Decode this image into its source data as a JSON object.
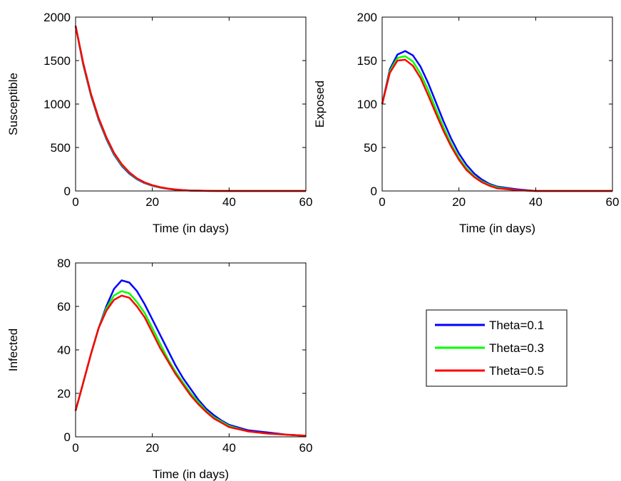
{
  "chart_data": [
    {
      "type": "line",
      "xlabel": "Time (in days)",
      "ylabel": "Susceptible",
      "xlim": [
        0,
        60
      ],
      "ylim": [
        0,
        2000
      ],
      "xticks": [
        "0",
        "20",
        "40",
        "60"
      ],
      "yticks": [
        "0",
        "500",
        "1000",
        "1500",
        "2000"
      ],
      "x": [
        0,
        2,
        4,
        6,
        8,
        10,
        12,
        14,
        16,
        18,
        20,
        22,
        24,
        26,
        28,
        30,
        35,
        40,
        45,
        50,
        55,
        60
      ],
      "series": [
        {
          "name": "Theta=0.1",
          "values": [
            1900,
            1450,
            1100,
            820,
            600,
            420,
            290,
            200,
            135,
            90,
            60,
            40,
            25,
            15,
            8,
            4,
            1,
            0,
            0,
            0,
            0,
            0
          ]
        },
        {
          "name": "Theta=0.3",
          "values": [
            1900,
            1460,
            1110,
            830,
            610,
            430,
            300,
            210,
            140,
            95,
            63,
            42,
            27,
            16,
            9,
            5,
            1,
            0,
            0,
            0,
            0,
            0
          ]
        },
        {
          "name": "Theta=0.5",
          "values": [
            1900,
            1470,
            1120,
            840,
            620,
            440,
            310,
            215,
            145,
            98,
            66,
            44,
            28,
            17,
            10,
            5,
            1,
            0,
            0,
            0,
            0,
            0
          ]
        }
      ]
    },
    {
      "type": "line",
      "xlabel": "Time (in days)",
      "ylabel": "Exposed",
      "xlim": [
        0,
        60
      ],
      "ylim": [
        0,
        200
      ],
      "xticks": [
        "0",
        "20",
        "40",
        "60"
      ],
      "yticks": [
        "0",
        "50",
        "100",
        "150",
        "200"
      ],
      "x": [
        0,
        2,
        4,
        6,
        8,
        10,
        12,
        14,
        16,
        18,
        20,
        22,
        24,
        26,
        28,
        30,
        35,
        40,
        45,
        50,
        55,
        60
      ],
      "series": [
        {
          "name": "Theta=0.1",
          "values": [
            100,
            140,
            157,
            161,
            156,
            143,
            124,
            102,
            80,
            60,
            43,
            30,
            20,
            13,
            8,
            5,
            2,
            0,
            0,
            0,
            0,
            0
          ]
        },
        {
          "name": "Theta=0.3",
          "values": [
            100,
            138,
            153,
            155,
            149,
            135,
            116,
            94,
            73,
            54,
            38,
            26,
            17,
            11,
            7,
            4,
            1,
            0,
            0,
            0,
            0,
            0
          ]
        },
        {
          "name": "Theta=0.5",
          "values": [
            100,
            136,
            150,
            151,
            144,
            130,
            110,
            89,
            69,
            51,
            36,
            24,
            16,
            10,
            6,
            3,
            1,
            0,
            0,
            0,
            0,
            0
          ]
        }
      ]
    },
    {
      "type": "line",
      "xlabel": "Time (in days)",
      "ylabel": "Infected",
      "xlim": [
        0,
        60
      ],
      "ylim": [
        0,
        80
      ],
      "xticks": [
        "0",
        "20",
        "40",
        "60"
      ],
      "yticks": [
        "0",
        "20",
        "40",
        "60",
        "80"
      ],
      "x": [
        0,
        2,
        4,
        6,
        8,
        10,
        12,
        14,
        16,
        18,
        20,
        22,
        24,
        26,
        28,
        30,
        32,
        34,
        36,
        38,
        40,
        45,
        50,
        55,
        60
      ],
      "series": [
        {
          "name": "Theta=0.1",
          "values": [
            12,
            25,
            38,
            50,
            60,
            68,
            72,
            71,
            67,
            61,
            54,
            47,
            40,
            33,
            27,
            22,
            17,
            13,
            10,
            7.5,
            5.5,
            3,
            2,
            1,
            0.5
          ]
        },
        {
          "name": "Theta=0.3",
          "values": [
            12,
            25,
            38,
            50,
            59,
            65,
            67,
            66,
            62,
            57,
            50,
            43,
            36,
            30,
            25,
            20,
            16,
            12,
            9,
            7,
            5,
            2.5,
            1.5,
            1,
            0.5
          ]
        },
        {
          "name": "Theta=0.5",
          "values": [
            12,
            25,
            38,
            50,
            58,
            63,
            65,
            64,
            60,
            55,
            48,
            41,
            35,
            29,
            24,
            19,
            15,
            11.5,
            8.5,
            6.5,
            4.5,
            2.5,
            1.5,
            1,
            0.5
          ]
        }
      ]
    }
  ],
  "legend": {
    "entries": [
      {
        "label": "Theta=0.1",
        "color": "#0000ff"
      },
      {
        "label": "Theta=0.3",
        "color": "#00ff00"
      },
      {
        "label": "Theta=0.5",
        "color": "#ff0000"
      }
    ]
  }
}
